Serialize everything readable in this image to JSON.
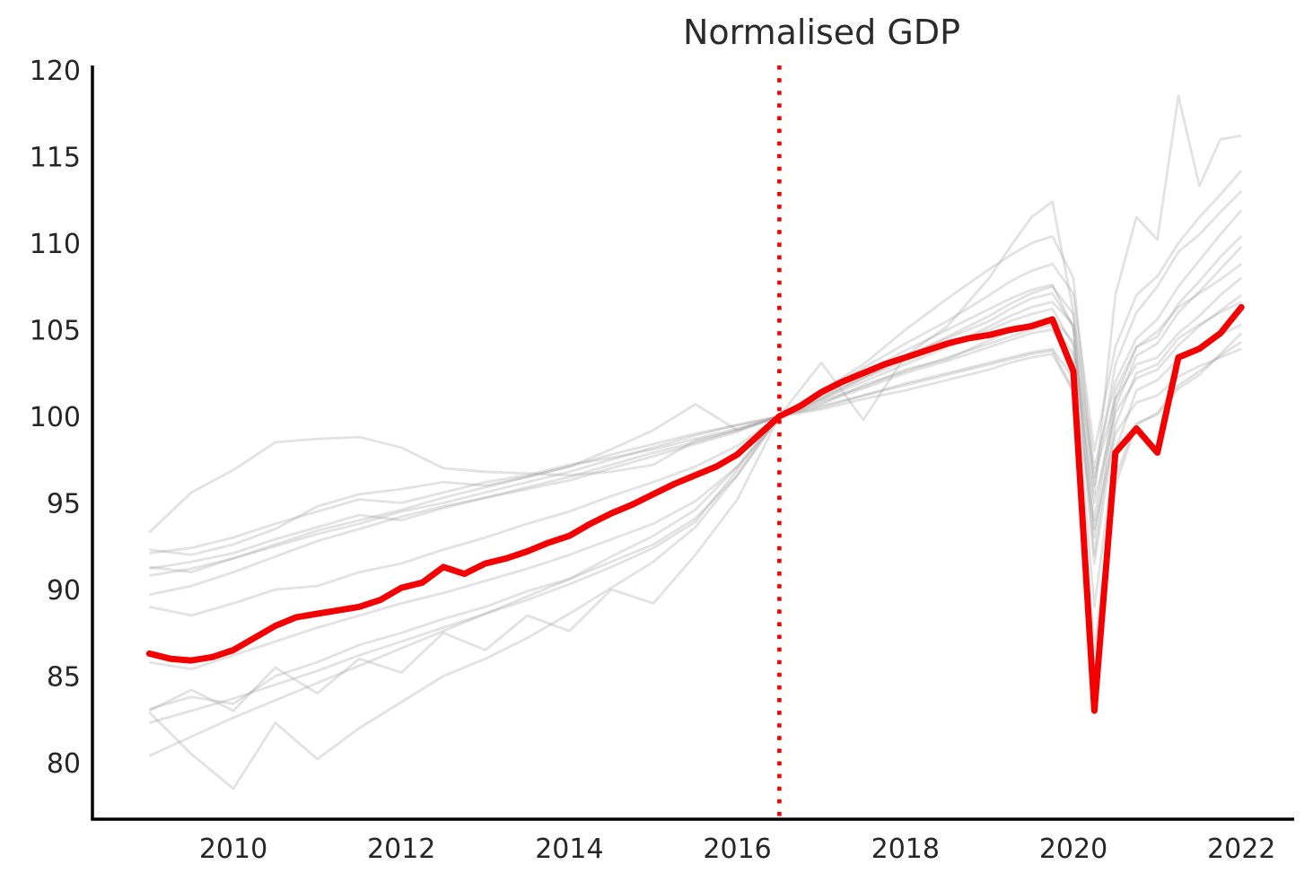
{
  "chart_data": {
    "type": "line",
    "title": "Normalised GDP",
    "xlabel": "",
    "ylabel": "",
    "grid": false,
    "legend_position": "none",
    "x_ticks": [
      2010,
      2012,
      2014,
      2016,
      2018,
      2020,
      2022
    ],
    "y_ticks": [
      80,
      85,
      90,
      95,
      100,
      105,
      110,
      115,
      120
    ],
    "xlim": [
      2008.35,
      2022.65
    ],
    "ylim": [
      76.7,
      120.3
    ],
    "normalisation_vline": {
      "x": 2016.5,
      "style": "dotted",
      "color": "#f40000"
    },
    "colors": {
      "highlight": "#f40000",
      "background": "#9e9e9e",
      "axis": "#000000",
      "tick_text": "#262626"
    },
    "highlight": {
      "x": [
        2009.0,
        2009.25,
        2009.5,
        2009.75,
        2010.0,
        2010.25,
        2010.5,
        2010.75,
        2011.0,
        2011.25,
        2011.5,
        2011.75,
        2012.0,
        2012.25,
        2012.5,
        2012.75,
        2013.0,
        2013.25,
        2013.5,
        2013.75,
        2014.0,
        2014.25,
        2014.5,
        2014.75,
        2015.0,
        2015.25,
        2015.5,
        2015.75,
        2016.0,
        2016.25,
        2016.5,
        2016.75,
        2017.0,
        2017.25,
        2017.5,
        2017.75,
        2018.0,
        2018.25,
        2018.5,
        2018.75,
        2019.0,
        2019.25,
        2019.5,
        2019.75,
        2020.0,
        2020.25,
        2020.5,
        2020.75,
        2021.0,
        2021.25,
        2021.5,
        2021.75,
        2022.0
      ],
      "values": [
        86.3,
        86.0,
        85.9,
        86.1,
        86.5,
        87.2,
        87.9,
        88.4,
        88.6,
        88.8,
        89.0,
        89.4,
        90.1,
        90.4,
        91.3,
        90.9,
        91.5,
        91.8,
        92.2,
        92.7,
        93.1,
        93.8,
        94.4,
        94.9,
        95.5,
        96.1,
        96.6,
        97.1,
        97.8,
        98.9,
        100.0,
        100.6,
        101.4,
        102.0,
        102.5,
        103.0,
        103.4,
        103.8,
        104.2,
        104.5,
        104.7,
        105.0,
        105.2,
        105.6,
        102.6,
        83.0,
        97.9,
        99.3,
        97.9,
        103.4,
        103.9,
        104.8,
        106.3
      ]
    },
    "background": {
      "x": [
        2009.0,
        2009.5,
        2010.0,
        2010.5,
        2011.0,
        2011.5,
        2012.0,
        2012.5,
        2013.0,
        2013.5,
        2014.0,
        2014.5,
        2015.0,
        2015.5,
        2016.0,
        2016.5,
        2017.0,
        2017.5,
        2018.0,
        2018.5,
        2019.0,
        2019.25,
        2019.5,
        2019.75,
        2020.0,
        2020.25,
        2020.5,
        2020.75,
        2021.0,
        2021.25,
        2021.5,
        2021.75,
        2022.0
      ],
      "series": [
        [
          93.3,
          95.6,
          96.9,
          98.5,
          98.7,
          98.8,
          98.2,
          97.0,
          96.8,
          96.7,
          96.6,
          96.8,
          97.2,
          98.6,
          99.2,
          100.0,
          100.6,
          101.2,
          101.9,
          102.5,
          103.1,
          103.4,
          103.7,
          103.9,
          102.2,
          93.5,
          99.0,
          100.8,
          101.2,
          102.3,
          102.9,
          103.4,
          103.9
        ],
        [
          92.3,
          92.0,
          92.6,
          93.5,
          94.8,
          95.5,
          95.8,
          96.2,
          96.0,
          96.5,
          97.1,
          98.1,
          99.2,
          100.7,
          99.2,
          100.0,
          100.7,
          101.8,
          102.6,
          103.4,
          104.2,
          104.6,
          105.0,
          105.3,
          103.6,
          95.0,
          100.2,
          102.2,
          102.7,
          104.1,
          105.2,
          106.1,
          107.0
        ],
        [
          92.1,
          92.4,
          93.0,
          93.8,
          94.5,
          95.2,
          95.0,
          95.6,
          96.2,
          96.6,
          97.2,
          97.6,
          98.1,
          98.7,
          99.3,
          100.0,
          100.9,
          101.7,
          102.7,
          103.3,
          104.4,
          104.9,
          105.4,
          105.7,
          104.3,
          96.5,
          101.0,
          103.0,
          103.4,
          104.8,
          105.8,
          107.0,
          108.0
        ],
        [
          91.3,
          91.0,
          91.8,
          92.6,
          93.4,
          94.0,
          94.6,
          95.3,
          95.9,
          96.5,
          97.1,
          97.8,
          98.4,
          99.0,
          99.5,
          100.0,
          101.5,
          103.0,
          105.0,
          106.8,
          108.5,
          109.3,
          110.0,
          110.4,
          108.0,
          96.0,
          103.0,
          106.0,
          107.5,
          109.5,
          110.5,
          111.8,
          113.0
        ],
        [
          89.7,
          90.2,
          91.0,
          91.9,
          92.8,
          93.5,
          94.2,
          94.8,
          95.3,
          95.9,
          96.5,
          97.2,
          97.9,
          98.5,
          99.2,
          100.0,
          101.2,
          102.3,
          103.5,
          104.5,
          105.5,
          106.2,
          106.8,
          107.1,
          105.2,
          94.0,
          101.5,
          104.0,
          104.6,
          106.5,
          107.8,
          109.2,
          110.4
        ],
        [
          89.0,
          88.5,
          89.2,
          90.0,
          90.2,
          91.0,
          91.5,
          92.3,
          93.0,
          93.8,
          94.5,
          95.4,
          96.2,
          97.1,
          98.3,
          100.0,
          101.0,
          102.0,
          103.0,
          104.0,
          105.2,
          105.8,
          106.3,
          106.6,
          105.3,
          92.0,
          100.5,
          103.5,
          104.2,
          106.0,
          107.2,
          108.5,
          109.8
        ],
        [
          85.8,
          85.4,
          86.2,
          87.0,
          87.8,
          88.5,
          89.2,
          89.8,
          90.5,
          91.2,
          92.0,
          92.9,
          93.8,
          95.1,
          97.1,
          100.0,
          100.5,
          101.2,
          101.8,
          102.4,
          103.0,
          103.3,
          103.6,
          103.8,
          101.5,
          84.5,
          96.0,
          99.5,
          100.2,
          101.8,
          102.6,
          103.5,
          104.3
        ],
        [
          83.1,
          83.8,
          83.4,
          85.0,
          85.8,
          86.8,
          87.5,
          88.3,
          89.0,
          89.9,
          90.6,
          91.6,
          92.6,
          94.1,
          96.6,
          100.0,
          101.0,
          102.2,
          103.2,
          104.2,
          105.0,
          105.5,
          105.9,
          106.2,
          104.1,
          91.5,
          99.5,
          102.5,
          103.0,
          104.5,
          105.3,
          106.0,
          106.6
        ],
        [
          82.9,
          80.5,
          78.5,
          82.3,
          80.2,
          82.0,
          83.5,
          85.0,
          86.0,
          87.2,
          88.6,
          90.1,
          91.6,
          93.6,
          96.6,
          100.0,
          100.8,
          101.6,
          102.5,
          103.2,
          104.0,
          104.4,
          104.8,
          105.0,
          102.9,
          89.0,
          98.0,
          101.5,
          102.1,
          103.3,
          104.0,
          104.7,
          105.3
        ],
        [
          82.3,
          83.0,
          83.7,
          84.5,
          85.3,
          86.2,
          87.0,
          87.8,
          88.6,
          89.4,
          90.3,
          91.3,
          92.4,
          93.9,
          96.9,
          100.0,
          100.4,
          101.0,
          101.5,
          102.1,
          102.7,
          103.1,
          103.4,
          103.6,
          101.4,
          86.5,
          96.5,
          99.6,
          100.1,
          101.6,
          102.4,
          103.6,
          104.8
        ],
        [
          80.4,
          81.5,
          82.6,
          83.6,
          84.6,
          85.6,
          86.6,
          87.6,
          88.6,
          89.6,
          90.6,
          91.9,
          93.1,
          94.6,
          97.1,
          100.0,
          101.3,
          102.5,
          103.8,
          105.0,
          106.2,
          106.8,
          107.3,
          107.6,
          105.1,
          93.0,
          101.0,
          104.0,
          104.9,
          106.3,
          107.1,
          107.9,
          108.8
        ],
        [
          91.2,
          91.6,
          92.1,
          92.9,
          93.6,
          94.3,
          94.0,
          94.7,
          95.3,
          95.8,
          96.3,
          97.0,
          97.7,
          98.4,
          99.1,
          100.0,
          101.1,
          102.2,
          103.4,
          104.6,
          105.8,
          106.5,
          107.1,
          107.5,
          105.9,
          97.0,
          102.0,
          104.5,
          105.6,
          107.5,
          109.0,
          110.5,
          111.9
        ],
        [
          83.0,
          84.2,
          83.0,
          85.5,
          84.0,
          86.0,
          85.2,
          87.5,
          86.5,
          88.5,
          87.6,
          90.0,
          89.2,
          92.0,
          95.2,
          100.0,
          103.1,
          99.8,
          103.5,
          105.2,
          108.0,
          109.8,
          111.5,
          112.4,
          106.0,
          95.5,
          107.0,
          111.5,
          110.2,
          118.5,
          113.3,
          116.0,
          116.2
        ],
        [
          90.8,
          91.2,
          91.8,
          92.5,
          93.2,
          93.8,
          94.5,
          95.0,
          95.6,
          96.2,
          96.8,
          97.5,
          98.2,
          98.9,
          99.5,
          100.0,
          101.3,
          102.8,
          104.2,
          105.5,
          107.0,
          107.8,
          108.4,
          108.8,
          107.1,
          98.0,
          104.0,
          107.0,
          108.1,
          110.0,
          111.5,
          112.8,
          114.2
        ]
      ]
    }
  }
}
